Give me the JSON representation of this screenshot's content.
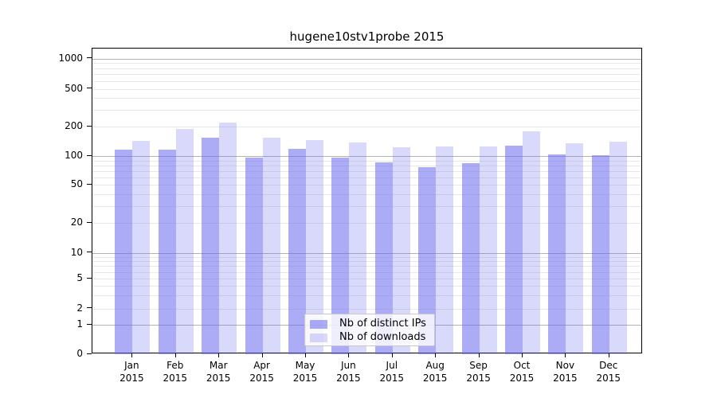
{
  "chart_data": {
    "type": "bar",
    "title": "hugene10stv1probe 2015",
    "categories": [
      "Jan",
      "Feb",
      "Mar",
      "Apr",
      "May",
      "Jun",
      "Jul",
      "Aug",
      "Sep",
      "Oct",
      "Nov",
      "Dec"
    ],
    "category_year": "2015",
    "series": [
      {
        "name": "Nb of distinct IPs",
        "color": "rgba(102,102,238,0.55)",
        "values": [
          117,
          117,
          156,
          97,
          119,
          96,
          87,
          77,
          85,
          128,
          104,
          102
        ]
      },
      {
        "name": "Nb of downloads",
        "color": "rgba(102,102,238,0.25)",
        "values": [
          145,
          189,
          223,
          156,
          147,
          139,
          124,
          126,
          127,
          180,
          137,
          140
        ]
      }
    ],
    "y_ticks": [
      "1000",
      "500",
      "200",
      "100",
      "50",
      "20",
      "10",
      "5",
      "2",
      "1",
      "0"
    ],
    "y_scale": "symlog",
    "ylim": [
      0,
      1300
    ],
    "xlabel": "",
    "ylabel": "",
    "grid": {
      "major_color": "#b3b3b3",
      "minor_color": "#e8e8e8"
    },
    "legend_position": "bottom-center",
    "frame_color": "#000000"
  }
}
